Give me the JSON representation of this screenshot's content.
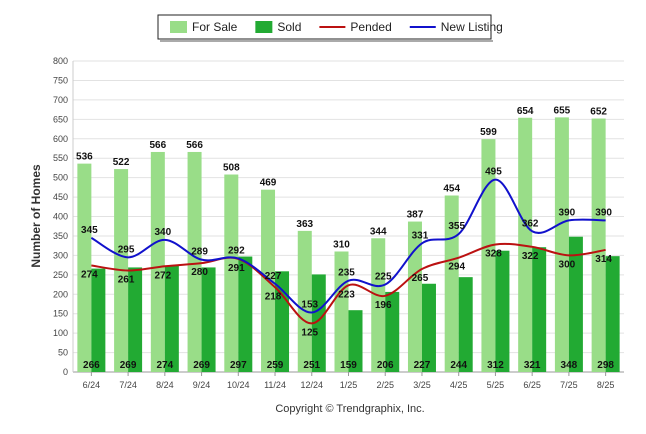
{
  "chart_data": {
    "type": "bar",
    "title": "",
    "xlabel": "",
    "ylabel": "Number of Homes",
    "ylim": [
      0,
      800
    ],
    "ytick_step": 50,
    "grid": true,
    "legend_position": "top-center",
    "categories": [
      "6/24",
      "7/24",
      "8/24",
      "9/24",
      "10/24",
      "11/24",
      "12/24",
      "1/25",
      "2/25",
      "3/25",
      "4/25",
      "5/25",
      "6/25",
      "7/25",
      "8/25"
    ],
    "series": [
      {
        "name": "For Sale",
        "kind": "bar",
        "color": "#99dd88",
        "values": [
          536,
          522,
          566,
          566,
          508,
          469,
          363,
          310,
          344,
          387,
          454,
          599,
          654,
          655,
          652
        ]
      },
      {
        "name": "Sold",
        "kind": "bar",
        "color": "#22aa33",
        "values": [
          266,
          269,
          274,
          269,
          297,
          259,
          251,
          159,
          206,
          227,
          244,
          312,
          321,
          348,
          298
        ]
      },
      {
        "name": "Pended",
        "kind": "line",
        "color": "#bb1111",
        "values": [
          274,
          261,
          272,
          280,
          291,
          218,
          125,
          223,
          196,
          265,
          294,
          328,
          322,
          300,
          314
        ]
      },
      {
        "name": "New Listing",
        "kind": "line",
        "color": "#1111cc",
        "values": [
          345,
          295,
          340,
          289,
          292,
          227,
          153,
          235,
          225,
          331,
          355,
          495,
          362,
          390,
          390
        ]
      }
    ],
    "footer": "Copyright © Trendgraphix, Inc."
  }
}
